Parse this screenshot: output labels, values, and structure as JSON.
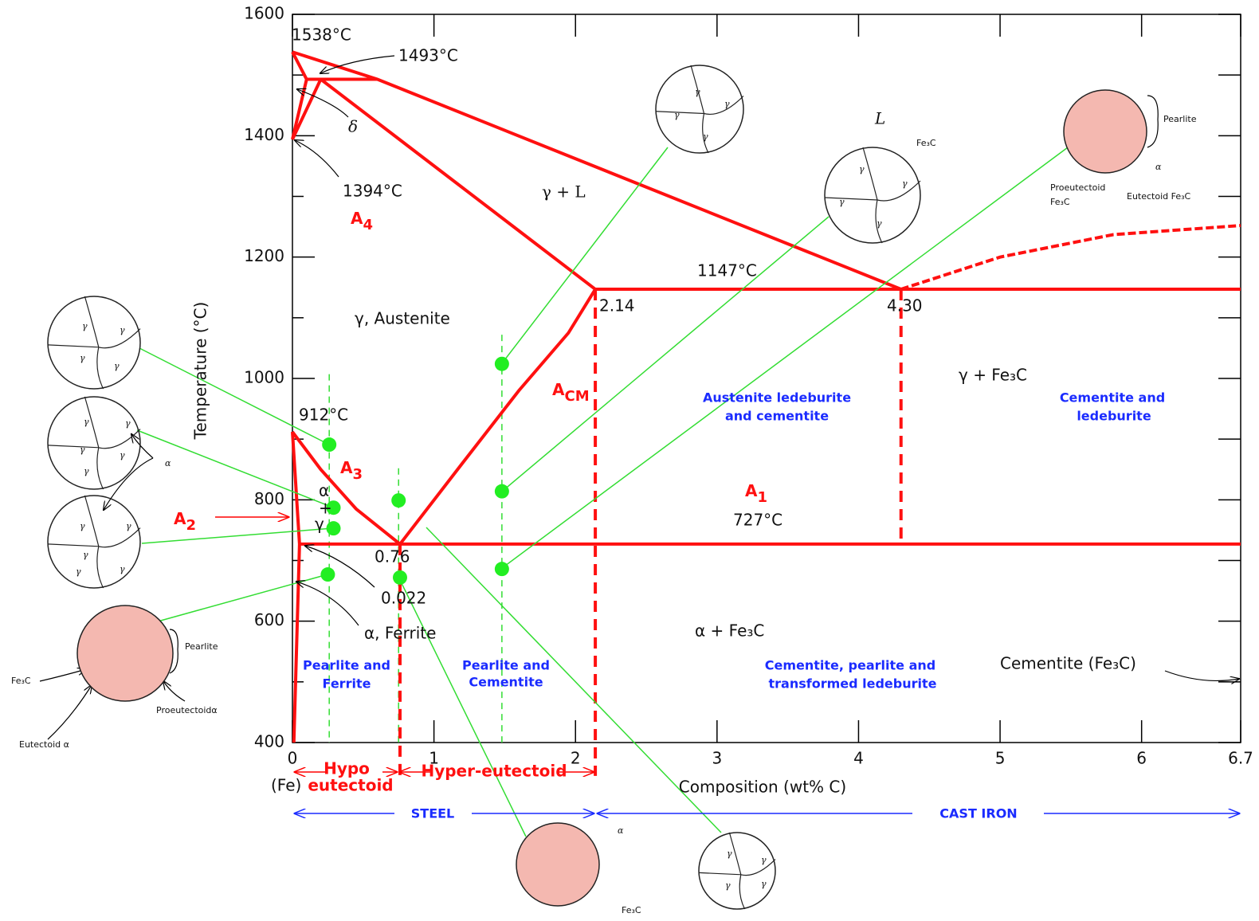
{
  "axes": {
    "x_label": "Composition (wt% C)",
    "y_label": "Temperature (°C)",
    "x_origin_note": "(Fe)",
    "xlim": [
      0,
      6.7
    ],
    "ylim": [
      400,
      1600
    ],
    "xticks": [
      0,
      1,
      2,
      3,
      4,
      5,
      6,
      6.7
    ],
    "yticks": [
      400,
      600,
      800,
      1000,
      1200,
      1400,
      1600
    ],
    "yticks_minor": [
      500,
      700,
      900,
      1100,
      1300,
      1500
    ]
  },
  "temperatures": [
    "1538°C",
    "1493°C",
    "1394°C",
    "1147°C",
    "912°C",
    "727°C"
  ],
  "compositions": [
    "2.14",
    "4.30",
    "0.76",
    "0.022"
  ],
  "phases": [
    "L",
    "γ + L",
    "γ, Austenite",
    "γ + Fe₃C",
    "α + Fe₃C",
    "α, Ferrite",
    "δ",
    "Cementite (Fe₃C)"
  ],
  "alpha_gamma": [
    "α",
    "+",
    "γ"
  ],
  "critical": [
    {
      "main": "A",
      "sub": "4"
    },
    {
      "main": "A",
      "sub": "3"
    },
    {
      "main": "A",
      "sub": "2"
    },
    {
      "main": "A",
      "sub": "1"
    },
    {
      "main": "A",
      "sub": "CM"
    }
  ],
  "microstructures": [
    [
      "Pearlite and",
      "Ferrite"
    ],
    [
      "Pearlite and",
      "Cementite"
    ],
    [
      "Austenite ledeburite",
      "and cementite"
    ],
    [
      "Cementite, pearlite and",
      "transformed ledeburite"
    ],
    [
      "Cementite and",
      "ledeburite"
    ]
  ],
  "ranges": {
    "hypo": [
      "Hypo",
      "eutectoid"
    ],
    "hyper": "Hyper-eutectoid",
    "steel": "STEEL",
    "cast_iron": "CAST IRON"
  },
  "boundaries": [
    {
      "style": "solid",
      "points": [
        [
          0,
          1538
        ],
        [
          0.6,
          1493
        ],
        [
          4.3,
          1147
        ]
      ]
    },
    {
      "style": "dashed",
      "points": [
        [
          4.3,
          1147
        ],
        [
          5,
          1200
        ],
        [
          5.8,
          1237
        ],
        [
          6.7,
          1252
        ]
      ]
    },
    {
      "style": "solid",
      "points": [
        [
          0,
          1538
        ],
        [
          0.1,
          1493
        ],
        [
          0,
          1394
        ],
        [
          0.2,
          1493
        ]
      ]
    },
    {
      "style": "solid",
      "points": [
        [
          0.1,
          1493
        ],
        [
          0.6,
          1493
        ]
      ]
    },
    {
      "style": "solid",
      "points": [
        [
          0.2,
          1493
        ],
        [
          2.14,
          1147
        ]
      ]
    },
    {
      "style": "solid",
      "points": [
        [
          0,
          912
        ],
        [
          0.2,
          850
        ],
        [
          0.45,
          785
        ],
        [
          0.76,
          727
        ]
      ]
    },
    {
      "style": "solid",
      "points": [
        [
          0.76,
          727
        ],
        [
          1.2,
          860
        ],
        [
          1.6,
          980
        ],
        [
          1.95,
          1075
        ],
        [
          2.14,
          1147
        ]
      ]
    },
    {
      "style": "solid",
      "points": [
        [
          0,
          912
        ],
        [
          0.05,
          727
        ],
        [
          0.01,
          400
        ]
      ]
    },
    {
      "style": "solid",
      "points": [
        [
          0.05,
          727
        ],
        [
          6.7,
          727
        ]
      ]
    },
    {
      "style": "solid",
      "points": [
        [
          2.14,
          1147
        ],
        [
          6.7,
          1147
        ]
      ]
    },
    {
      "style": "dashed",
      "points": [
        [
          0.76,
          727
        ],
        [
          0.76,
          345
        ]
      ]
    },
    {
      "style": "dashed",
      "points": [
        [
          2.14,
          1147
        ],
        [
          2.14,
          345
        ]
      ]
    },
    {
      "style": "dashed",
      "points": [
        [
          4.3,
          1147
        ],
        [
          4.3,
          727
        ]
      ]
    }
  ],
  "guides": [
    [
      [
        0.26,
        1007
      ],
      [
        0.26,
        400
      ]
    ],
    [
      [
        0.75,
        852
      ],
      [
        0.75,
        400
      ]
    ],
    [
      [
        1.48,
        1072
      ],
      [
        1.48,
        400
      ]
    ]
  ],
  "dots": [
    [
      0.26,
      891
    ],
    [
      0.29,
      787
    ],
    [
      0.29,
      753
    ],
    [
      0.25,
      677
    ],
    [
      0.75,
      799
    ],
    [
      0.76,
      672
    ],
    [
      1.48,
      1024
    ],
    [
      1.48,
      814
    ],
    [
      1.48,
      686
    ]
  ],
  "micrographs": [
    {
      "labels": [
        "γ",
        "γ",
        "γ",
        "γ"
      ]
    },
    {
      "labels": [
        "γ",
        "γ",
        "γ",
        "γ",
        "γ",
        "α"
      ]
    },
    {
      "labels": [
        "γ",
        "γ",
        "γ",
        "γ",
        "γ"
      ]
    },
    {
      "labels": [
        "Pearlite",
        "Fe₃C",
        "Proeutectoidα",
        "Eutectoid α"
      ]
    },
    {
      "labels": [
        "γ",
        "γ",
        "γ",
        "γ"
      ]
    },
    {
      "labels": [
        "Fe₃C",
        "γ",
        "γ",
        "γ",
        "γ"
      ]
    },
    {
      "labels": [
        "Pearlite",
        "α",
        "Proeutectoid",
        "Fe₃C",
        "Eutectoid Fe₃C"
      ]
    },
    {
      "labels": [
        "α",
        "Fe₃C"
      ]
    },
    {
      "labels": [
        "γ",
        "γ",
        "γ",
        "γ"
      ]
    }
  ]
}
